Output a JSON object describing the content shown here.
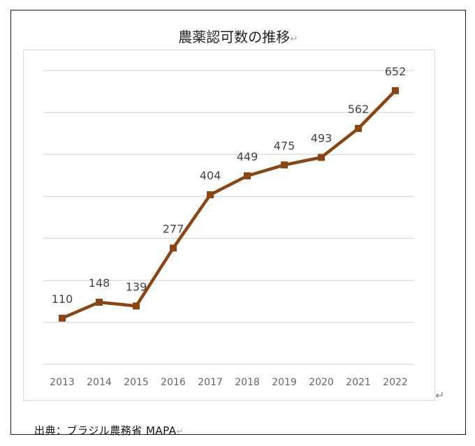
{
  "chart_data": {
    "type": "line",
    "title": "農薬認可数の推移",
    "categories": [
      "2013",
      "2014",
      "2015",
      "2016",
      "2017",
      "2018",
      "2019",
      "2020",
      "2021",
      "2022"
    ],
    "series": [
      {
        "name": "農薬認可数",
        "values": [
          110,
          148,
          139,
          277,
          404,
          449,
          475,
          493,
          562,
          652
        ],
        "color": "#8b4513"
      }
    ],
    "ylim": [
      0,
      700
    ],
    "yticks": [
      0,
      100,
      200,
      300,
      400,
      500,
      600,
      700
    ],
    "grid": true,
    "show_y_labels": false,
    "xlabel": "",
    "ylabel": ""
  },
  "source": "出典：ブラジル農務省 MAPA",
  "marks": {
    "return": "↵"
  },
  "colors": {
    "line": "#8b4513",
    "grid": "#d9d9d9",
    "axis_text": "#666666",
    "label_text": "#444444"
  }
}
